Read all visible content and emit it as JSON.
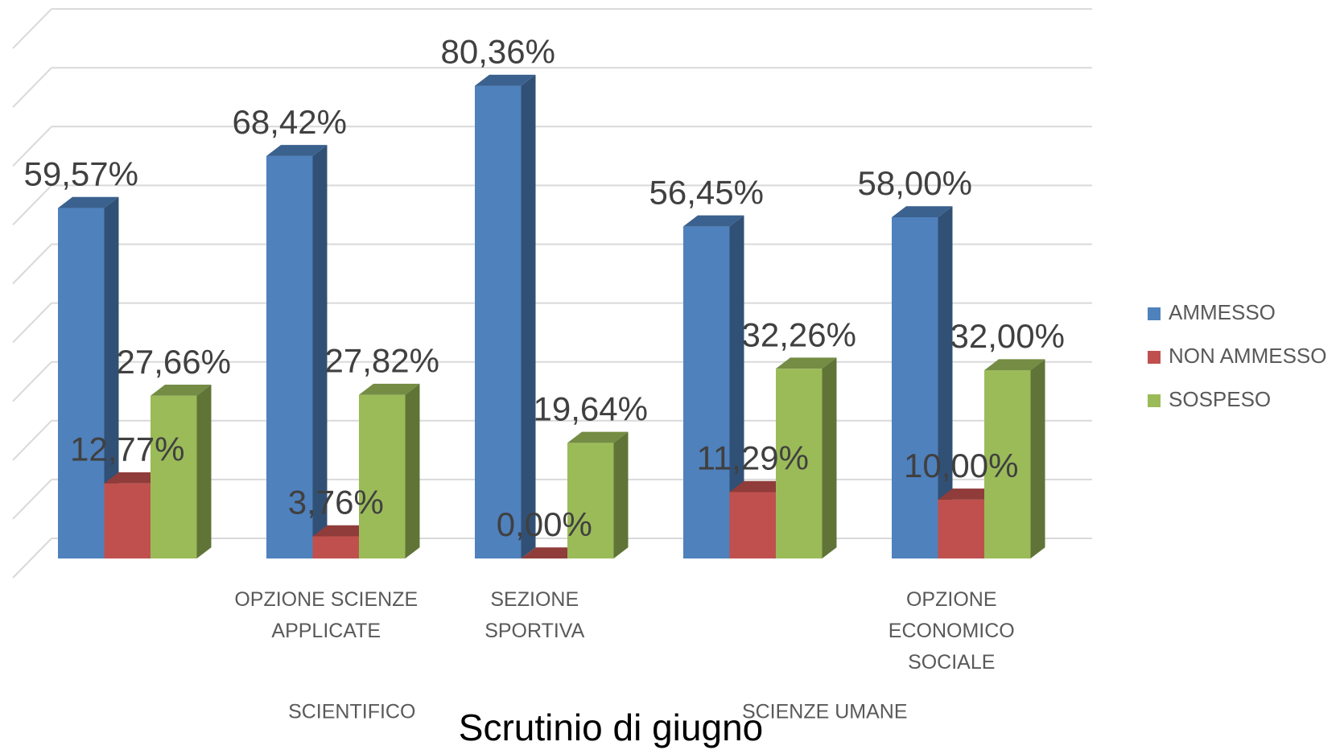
{
  "chart_data": {
    "type": "bar3d",
    "title": "Scrutinio di giugno",
    "categories": [
      null,
      "OPZIONE SCIENZE APPLICATE",
      "SEZIONE SPORTIVA",
      null,
      "OPZIONE ECONOMICO SOCIALE"
    ],
    "groups": [
      {
        "name": "SCIENTIFICO",
        "size": 3
      },
      {
        "name": "SCIENZE UMANE",
        "size": 2
      }
    ],
    "series": [
      {
        "name": "AMMESSO",
        "color": "#4f81bd",
        "values": [
          59.57,
          68.42,
          80.36,
          56.45,
          58.0
        ],
        "value_labels": [
          "59,57%",
          "68,42%",
          "80,36%",
          "56,45%",
          "58,00%"
        ]
      },
      {
        "name": "NON AMMESSO",
        "color": "#c0504d",
        "values": [
          12.77,
          3.76,
          0,
          11.29,
          10.0
        ],
        "value_labels": [
          "12,77%",
          "3,76%",
          "0,00%",
          "11,29%",
          "10,00%"
        ]
      },
      {
        "name": "SOSPESO",
        "color": "#9bbb59",
        "values": [
          27.66,
          27.82,
          19.64,
          32.26,
          32.0
        ],
        "value_labels": [
          "27,66%",
          "27,82%",
          "19,64%",
          "32,26%",
          "32,00%"
        ]
      }
    ],
    "ylim": [
      0,
      90
    ],
    "yticks": [
      0,
      10,
      20,
      30,
      40,
      50,
      60,
      70,
      80,
      90
    ],
    "grid": true,
    "legend": "right"
  }
}
